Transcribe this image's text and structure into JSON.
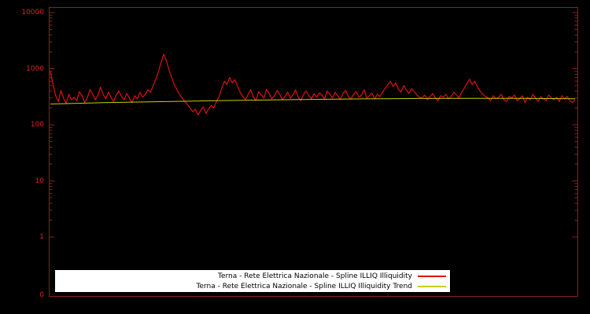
{
  "colors": {
    "background": "#000000",
    "axis": "#8b2020",
    "tick_label": "#dd2222",
    "legend_bg": "#ffffff",
    "legend_text": "#000000",
    "series_main": "#dd1111",
    "series_trend": "#cccc00"
  },
  "chart_data": {
    "type": "line",
    "title": "",
    "xlabel": "",
    "ylabel": "",
    "y_scale": "log",
    "ylim": [
      1,
      10000
    ],
    "ytick_labels": [
      "10000",
      "1000",
      "100",
      "10",
      "1",
      "0"
    ],
    "xtick_labels": [],
    "grid": false,
    "legend_position": "bottom-center",
    "series": [
      {
        "name": "Terna - Rete Elettrica Nazionale - Spline ILLIQ Illiquidity",
        "color": "#dd1111",
        "values": [
          900,
          520,
          330,
          260,
          410,
          300,
          240,
          350,
          280,
          310,
          270,
          390,
          330,
          250,
          300,
          420,
          360,
          280,
          330,
          470,
          350,
          290,
          380,
          310,
          260,
          340,
          400,
          320,
          280,
          360,
          300,
          250,
          330,
          290,
          380,
          310,
          350,
          420,
          380,
          500,
          650,
          900,
          1300,
          1800,
          1400,
          950,
          700,
          520,
          420,
          350,
          300,
          260,
          230,
          200,
          170,
          190,
          150,
          180,
          210,
          160,
          190,
          220,
          200,
          260,
          320,
          450,
          600,
          520,
          700,
          560,
          640,
          480,
          380,
          320,
          280,
          350,
          420,
          310,
          270,
          390,
          340,
          300,
          430,
          360,
          290,
          330,
          410,
          350,
          280,
          320,
          380,
          300,
          340,
          420,
          310,
          270,
          350,
          400,
          330,
          290,
          360,
          310,
          370,
          340,
          290,
          400,
          350,
          300,
          380,
          330,
          280,
          360,
          410,
          320,
          290,
          350,
          390,
          310,
          340,
          420,
          300,
          330,
          370,
          290,
          350,
          320,
          380,
          450,
          520,
          600,
          480,
          560,
          430,
          380,
          500,
          420,
          360,
          440,
          390,
          340,
          310,
          300,
          340,
          280,
          320,
          360,
          300,
          270,
          330,
          310,
          350,
          290,
          320,
          380,
          340,
          300,
          380,
          450,
          550,
          650,
          520,
          600,
          470,
          400,
          350,
          320,
          300,
          270,
          330,
          290,
          310,
          350,
          280,
          260,
          320,
          300,
          340,
          270,
          290,
          330,
          250,
          310,
          280,
          350,
          300,
          260,
          320,
          290,
          270,
          340,
          300,
          280,
          310,
          260,
          330,
          290,
          320,
          270,
          250,
          280
        ]
      },
      {
        "name": "Terna - Rete Elettrica Nazionale - Spline ILLIQ Illiquidity Trend",
        "color": "#cccc00",
        "values": [
          235,
          248,
          258,
          268,
          276,
          284,
          290,
          295,
          297,
          296,
          292
        ]
      }
    ]
  }
}
